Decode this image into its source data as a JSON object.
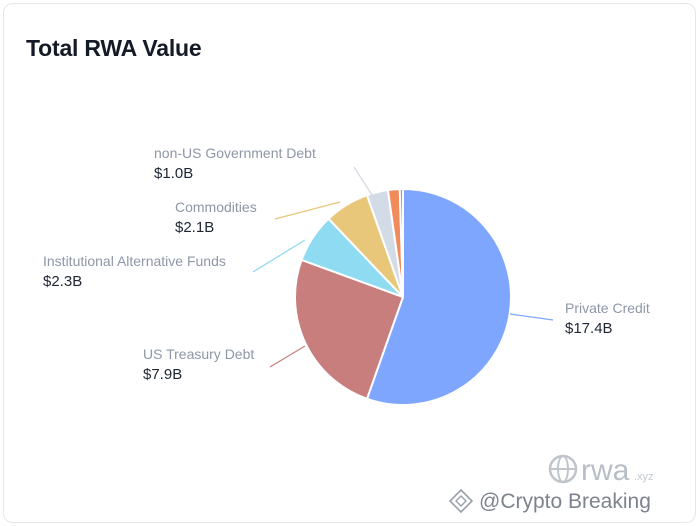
{
  "title": "Total RWA Value",
  "chart_data": {
    "type": "pie",
    "title": "Total RWA Value",
    "slices": [
      {
        "label": "Private Credit",
        "value_label": "$17.4B",
        "value": 17.4,
        "color": "#7fa6ff"
      },
      {
        "label": "US Treasury Debt",
        "value_label": "$7.9B",
        "value": 7.9,
        "color": "#c97e7e"
      },
      {
        "label": "Institutional Alternative Funds",
        "value_label": "$2.3B",
        "value": 2.3,
        "color": "#8fdcf2"
      },
      {
        "label": "Commodities",
        "value_label": "$2.1B",
        "value": 2.1,
        "color": "#e9c77a"
      },
      {
        "label": "non-US Government Debt",
        "value_label": "$1.0B",
        "value": 1.0,
        "color": "#d3dbe6"
      },
      {
        "label": "",
        "value_label": "",
        "value": 0.55,
        "color": "#f08c5c"
      },
      {
        "label": "",
        "value_label": "",
        "value": 0.15,
        "color": "#b07fe0"
      }
    ]
  },
  "watermark": {
    "brand": "rwa",
    "brand_suffix": ".xyz",
    "crypto_breaking": "@Crypto Breaking"
  }
}
